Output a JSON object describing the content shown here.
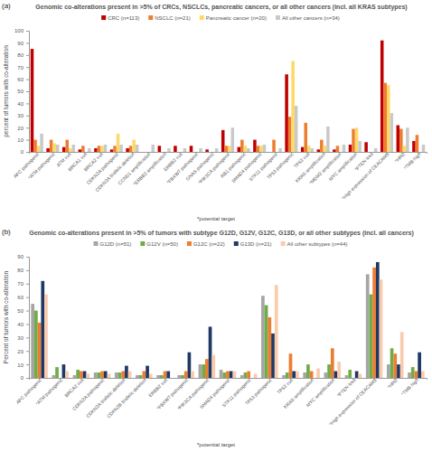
{
  "chart_data": [
    {
      "type": "bar",
      "panel_label": "(a)",
      "title": "Genomic co-alterations present in >5% of CRCs, NSCLCs, pancreatic cancers, or all other cancers (incl. all KRAS subtypes)",
      "y_label": "percent of tumors with co-alteration",
      "footnote": "*potential target",
      "legend": "top",
      "grid": false,
      "ylim": [
        0,
        100
      ],
      "yticks": [
        0,
        10,
        20,
        30,
        40,
        50,
        60,
        70,
        80,
        90,
        100
      ],
      "categories": [
        "APC pathogenic",
        "*ATM pathogenic",
        "ATM vus",
        "BRCA1 vus",
        "BRCA2 vus",
        "CDKN2A pathogenic",
        "CDKN2A biallelic deletion",
        "CCND1 amplification",
        "*ERBB2 amplification",
        "ERBB2 vus",
        "*FBXW7 pathogenic",
        "GNAS pathogenic",
        "*PIK3CA pathogenic",
        "RB1 pathogenic",
        "SMAD4 pathogenic",
        "STK11 pathogenic",
        "TP53 pathogenic",
        "TP53 vus",
        "KRAS amplification",
        "*MDM2 amplification",
        "MYC amplification",
        "*PTEN loss",
        "*High expression of CEACAM5",
        "*HRD",
        "*TMB high"
      ],
      "series": [
        {
          "name": "CRC (n=113)",
          "color": "#c00000",
          "values": [
            85,
            3,
            4,
            2,
            3,
            2,
            3,
            0,
            5,
            5,
            5,
            2,
            18,
            4,
            10,
            0,
            64,
            4,
            2,
            2,
            6,
            8,
            92,
            22,
            9
          ]
        },
        {
          "name": "NSCLC (n=21)",
          "color": "#ed7d31",
          "values": [
            10,
            10,
            10,
            5,
            5,
            5,
            5,
            0,
            0,
            0,
            0,
            0,
            5,
            10,
            5,
            10,
            29,
            24,
            10,
            5,
            19,
            0,
            57,
            19,
            14
          ]
        },
        {
          "name": "Pancreatic cancer (n=20)",
          "color": "#ffd966",
          "values": [
            5,
            7,
            3,
            0,
            5,
            15,
            10,
            0,
            0,
            0,
            0,
            0,
            5,
            5,
            5,
            0,
            75,
            5,
            5,
            0,
            20,
            0,
            55,
            5,
            0
          ]
        },
        {
          "name": "All other cancers (n=34)",
          "color": "#c9c9c9",
          "values": [
            15,
            6,
            6,
            3,
            6,
            6,
            6,
            6,
            3,
            3,
            3,
            3,
            20,
            3,
            6,
            3,
            38,
            3,
            21,
            6,
            9,
            3,
            32,
            20,
            6
          ]
        }
      ]
    },
    {
      "type": "bar",
      "panel_label": "(b)",
      "title": "Genomic co-alterations present in >5% of tumors with subtype G12D, G12V, G12C, G13D, or all other subtypes (incl. all cancers)",
      "y_label": "Percent of tumors with co-alteration",
      "footnote": "*potential target",
      "legend": "top",
      "grid": false,
      "ylim": [
        0,
        90
      ],
      "yticks": [
        0,
        10,
        20,
        30,
        40,
        50,
        60,
        70,
        80,
        90
      ],
      "categories": [
        "APC pathogenic",
        "*ATM pathogenic",
        "BRCA2 vus",
        "CDKN2A pathogenic",
        "CDKN2A biallelic deletion",
        "CDKN2B biallelic deletion",
        "ERBB2 vus",
        "*FBXW7 pathogenic",
        "*PIK3CA pathogenic",
        "SMAD4 pathogenic",
        "STK11 pathogenic",
        "TP53 pathogenic",
        "TP53 vus",
        "KRAS amplification",
        "MYC amplification",
        "*PTEN loss",
        "*High expression of CEACAM5",
        "*HRD",
        "*TMB high"
      ],
      "series": [
        {
          "name": "G12D (n=51)",
          "color": "#a5a5a5",
          "values": [
            55,
            2,
            2,
            4,
            4,
            2,
            2,
            2,
            10,
            6,
            2,
            61,
            2,
            4,
            4,
            2,
            77,
            10,
            4
          ]
        },
        {
          "name": "G12V (n=50)",
          "color": "#70ad47",
          "values": [
            50,
            8,
            6,
            4,
            4,
            2,
            2,
            2,
            10,
            4,
            4,
            54,
            4,
            10,
            10,
            6,
            62,
            22,
            8
          ]
        },
        {
          "name": "G12C (n=22)",
          "color": "#ed7d31",
          "values": [
            41,
            0,
            5,
            5,
            5,
            5,
            5,
            5,
            14,
            5,
            5,
            45,
            18,
            5,
            22,
            0,
            82,
            18,
            5
          ]
        },
        {
          "name": "G13D (n=21)",
          "color": "#203864",
          "values": [
            72,
            10,
            5,
            5,
            9,
            9,
            5,
            19,
            38,
            5,
            0,
            33,
            5,
            0,
            5,
            5,
            86,
            10,
            19
          ]
        },
        {
          "name": "All other subtypes (n=44)",
          "color": "#f8cbad",
          "values": [
            62,
            5,
            3,
            3,
            5,
            3,
            0,
            5,
            17,
            5,
            3,
            69,
            5,
            7,
            12,
            3,
            73,
            34,
            5
          ]
        }
      ]
    }
  ]
}
